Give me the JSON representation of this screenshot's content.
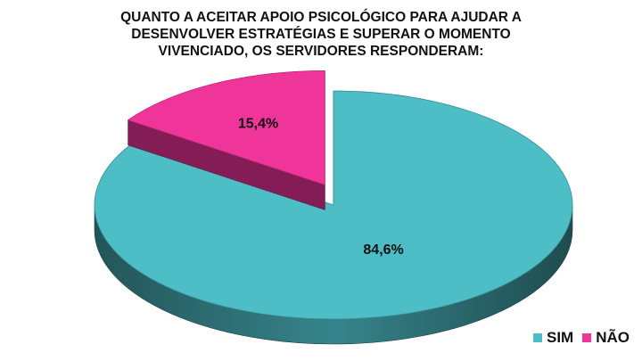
{
  "chart_data": {
    "type": "pie",
    "title": "QUANTO A ACEITAR APOIO PSICOLÓGICO PARA AJUDAR A\nDESENVOLVER ESTRATÉGIAS E SUPERAR O MOMENTO\nVIVENCIADO, OS SERVIDORES RESPONDERAM:",
    "slices": [
      {
        "label": "SIM",
        "value": 84.6,
        "value_label": "84,6%",
        "color": "#4dbdc6"
      },
      {
        "label": "NÃO",
        "value": 15.4,
        "value_label": "15,4%",
        "color": "#f0359a"
      }
    ],
    "exploded": "NÃO",
    "legend_position": "bottom-right",
    "style": "3d"
  }
}
